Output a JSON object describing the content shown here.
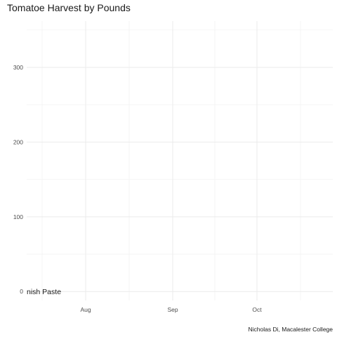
{
  "chart_data": {
    "type": "line",
    "title": "Tomatoe Harvest by Pounds",
    "caption": "Nicholas Di, Macalester College",
    "xlabel": "",
    "ylabel": "",
    "x_ticks": [
      {
        "date": "2020-08-01",
        "label": "Aug"
      },
      {
        "date": "2020-09-01",
        "label": "Sep"
      },
      {
        "date": "2020-10-01",
        "label": "Oct"
      }
    ],
    "x_range": [
      "2020-07-11",
      "2020-10-28"
    ],
    "y_ticks": [
      0,
      100,
      200,
      300
    ],
    "ylim": [
      -12,
      362
    ],
    "grid": true,
    "legend": "none",
    "series": [
      {
        "label": "nish Paste",
        "x": [
          "2020-07-11"
        ],
        "y": [
          0
        ]
      }
    ]
  }
}
